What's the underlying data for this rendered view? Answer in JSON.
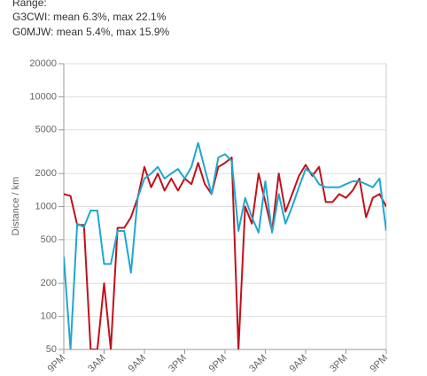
{
  "chart_data": {
    "type": "line",
    "range_label": "Range:",
    "y_label": "Distance / km",
    "log_y": true,
    "grid": true,
    "xlim": [
      0,
      48
    ],
    "xticks": [
      {
        "value": 0,
        "label": "9PM"
      },
      {
        "value": 6,
        "label": "3AM"
      },
      {
        "value": 12,
        "label": "9AM"
      },
      {
        "value": 18,
        "label": "3PM"
      },
      {
        "value": 24,
        "label": "9PM"
      },
      {
        "value": 30,
        "label": "3AM"
      },
      {
        "value": 36,
        "label": "9AM"
      },
      {
        "value": 42,
        "label": "3PM"
      },
      {
        "value": 48,
        "label": "9PM"
      }
    ],
    "ylim": [
      50,
      20000
    ],
    "yticks": [
      50,
      100,
      200,
      500,
      1000,
      2000,
      5000,
      10000,
      20000
    ],
    "x": [
      0,
      1,
      2,
      3,
      4,
      5,
      6,
      7,
      8,
      9,
      10,
      11,
      12,
      13,
      14,
      15,
      16,
      17,
      18,
      19,
      20,
      21,
      22,
      23,
      24,
      25,
      26,
      27,
      28,
      29,
      30,
      31,
      32,
      33,
      34,
      35,
      36,
      37,
      38,
      39,
      40,
      41,
      42,
      43,
      44,
      45,
      46,
      47,
      48
    ],
    "series": [
      {
        "summary": "G3CWI: mean 6.3%, max 22.1%",
        "color": "#c0121b",
        "values": [
          1300,
          1250,
          680,
          680,
          50,
          50,
          200,
          50,
          640,
          640,
          800,
          1200,
          2300,
          1500,
          2000,
          1400,
          1800,
          1400,
          1800,
          1600,
          2500,
          1600,
          1300,
          2300,
          2500,
          2800,
          50,
          1000,
          700,
          2000,
          1100,
          600,
          2000,
          900,
          1300,
          1900,
          2400,
          1900,
          2300,
          1100,
          1100,
          1300,
          1200,
          1400,
          1800,
          800,
          1200,
          1300,
          1000
        ]
      },
      {
        "summary": "G0MJW: mean 5.4%, max 15.9%",
        "color": "#1fa7d0",
        "values": [
          350,
          50,
          700,
          650,
          920,
          920,
          300,
          300,
          600,
          600,
          250,
          1200,
          1800,
          2000,
          2300,
          1800,
          2000,
          2200,
          1800,
          2300,
          3800,
          2200,
          1300,
          2800,
          3000,
          2600,
          600,
          1200,
          800,
          580,
          1700,
          580,
          1300,
          700,
          1000,
          1500,
          2200,
          2000,
          1600,
          1500,
          1500,
          1500,
          1600,
          1700,
          1700,
          1600,
          1500,
          1800,
          600
        ]
      }
    ]
  }
}
